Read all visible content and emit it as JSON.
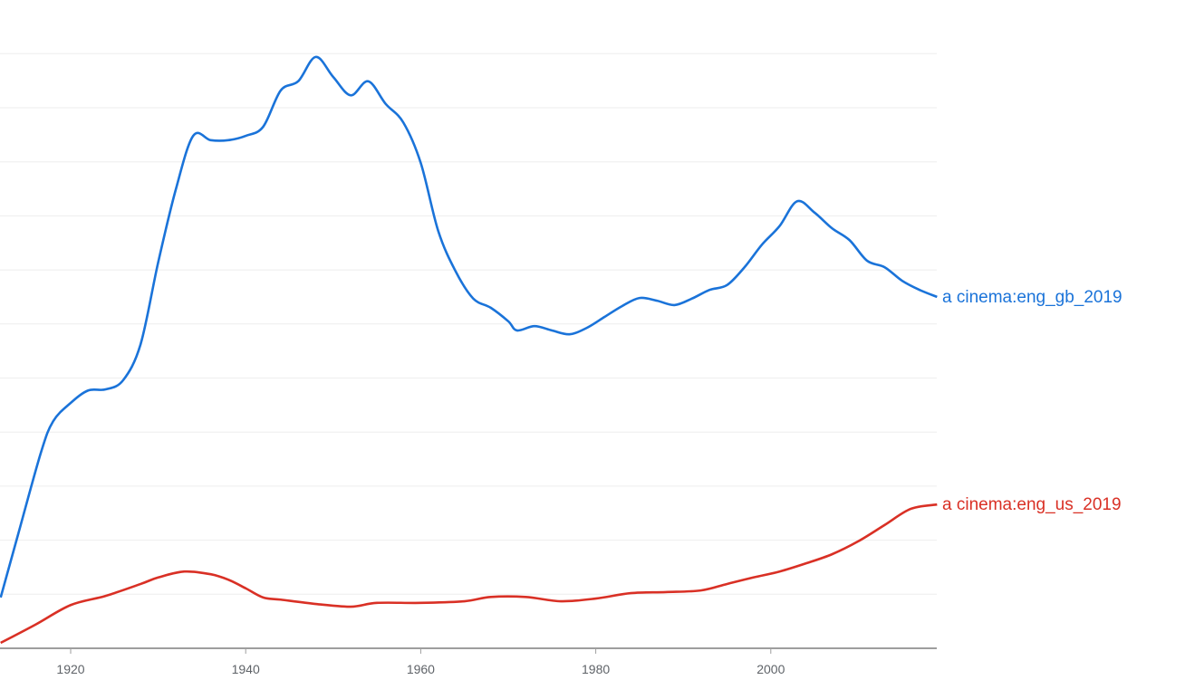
{
  "chart_data": {
    "type": "line",
    "title": "",
    "xlabel": "",
    "ylabel": "",
    "xlim": [
      1912,
      2019
    ],
    "ylim": [
      0,
      11
    ],
    "grid": true,
    "legend": "inline-right",
    "xticks": [
      "1920",
      "1940",
      "1960",
      "1980",
      "2000"
    ],
    "series": [
      {
        "name": "a cinema:eng_gb_2019",
        "color": "#1a73d9",
        "x": [
          1912,
          1914,
          1916.6,
          1918,
          1920,
          1922,
          1924,
          1926,
          1928,
          1930,
          1932,
          1934,
          1936,
          1938,
          1940,
          1942,
          1944,
          1946,
          1948,
          1950,
          1952,
          1954,
          1956,
          1958,
          1960,
          1962,
          1964,
          1966,
          1968,
          1970,
          1971,
          1973,
          1975,
          1977,
          1979,
          1981,
          1983,
          1985,
          1987,
          1989,
          1991,
          1993,
          1995,
          1997,
          1999,
          2001,
          2003,
          2005,
          2007,
          2009,
          2011,
          2013,
          2015,
          2017,
          2019
        ],
        "y": [
          0.94,
          2.11,
          3.62,
          4.2,
          4.54,
          4.77,
          4.79,
          4.96,
          5.63,
          7.14,
          8.48,
          9.48,
          9.4,
          9.4,
          9.48,
          9.65,
          10.32,
          10.49,
          10.94,
          10.57,
          10.23,
          10.49,
          10.07,
          9.73,
          8.98,
          7.72,
          6.97,
          6.47,
          6.3,
          6.05,
          5.88,
          5.96,
          5.88,
          5.81,
          5.93,
          6.13,
          6.33,
          6.48,
          6.43,
          6.35,
          6.47,
          6.63,
          6.72,
          7.05,
          7.47,
          7.81,
          8.27,
          8.06,
          7.77,
          7.55,
          7.17,
          7.05,
          6.8,
          6.63,
          6.5
        ]
      },
      {
        "name": "a cinema:eng_us_2019",
        "color": "#d93025",
        "x": [
          1912,
          1916,
          1920,
          1924,
          1928,
          1930,
          1933,
          1936,
          1938,
          1940,
          1942,
          1944,
          1948,
          1952,
          1955,
          1960,
          1965,
          1968,
          1972,
          1976,
          1980,
          1984,
          1988,
          1992,
          1995,
          1998,
          2001,
          2004,
          2007,
          2010,
          2013,
          2016,
          2019
        ],
        "y": [
          0.1,
          0.44,
          0.8,
          0.97,
          1.19,
          1.31,
          1.42,
          1.37,
          1.27,
          1.11,
          0.94,
          0.9,
          0.82,
          0.77,
          0.84,
          0.84,
          0.87,
          0.95,
          0.95,
          0.87,
          0.92,
          1.02,
          1.04,
          1.07,
          1.19,
          1.31,
          1.42,
          1.57,
          1.74,
          1.98,
          2.28,
          2.58,
          2.66
        ]
      }
    ]
  }
}
